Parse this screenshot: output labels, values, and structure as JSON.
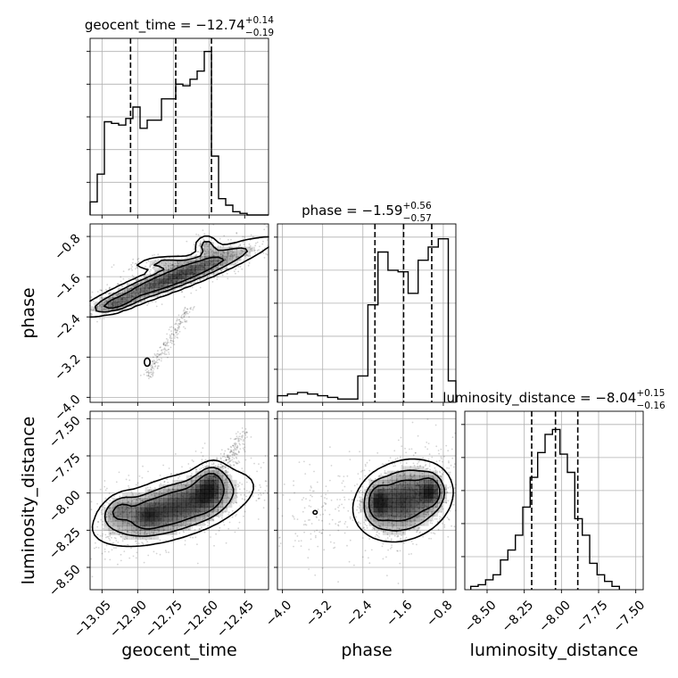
{
  "chart_data": {
    "type": "corner",
    "grid": true,
    "parameters": [
      {
        "name": "geocent_time",
        "axis_label": "geocent_time",
        "title": {
          "prefix": "geocent_time = ",
          "value": "−12.74",
          "sup": "+0.14",
          "sub": "−0.19"
        },
        "range": [
          -13.1,
          -12.35
        ],
        "ticks": [
          -13.05,
          -12.9,
          -12.75,
          -12.6,
          -12.45
        ],
        "tick_labels": [
          "−13.05",
          "−12.90",
          "−12.75",
          "−12.60",
          "−12.45"
        ],
        "quantiles": [
          -12.93,
          -12.74,
          -12.59
        ],
        "histogram": {
          "bin_edges": [
            -13.1,
            -13.07,
            -13.04,
            -13.01,
            -12.98,
            -12.95,
            -12.92,
            -12.89,
            -12.86,
            -12.83,
            -12.8,
            -12.77,
            -12.74,
            -12.71,
            -12.68,
            -12.65,
            -12.62,
            -12.59,
            -12.56,
            -12.53,
            -12.5,
            -12.47,
            -12.44,
            -12.41,
            -12.38,
            -12.35
          ],
          "counts": [
            0.08,
            0.25,
            0.57,
            0.56,
            0.55,
            0.59,
            0.66,
            0.53,
            0.58,
            0.58,
            0.71,
            0.71,
            0.8,
            0.79,
            0.83,
            0.88,
            1.0,
            0.36,
            0.1,
            0.06,
            0.02,
            0.01,
            0.0,
            0.0,
            0.0
          ]
        }
      },
      {
        "name": "phase",
        "axis_label": "phase",
        "title": {
          "prefix": "phase = ",
          "value": "−1.59",
          "sup": "+0.56",
          "sub": "−0.57"
        },
        "range": [
          -4.1,
          -0.55
        ],
        "ticks": [
          -4.0,
          -3.2,
          -2.4,
          -1.6,
          -0.8
        ],
        "tick_labels": [
          "−4.0",
          "−3.2",
          "−2.4",
          "−1.6",
          "−0.8"
        ],
        "quantiles": [
          -2.16,
          -1.59,
          -1.03
        ],
        "histogram": {
          "bin_edges": [
            -4.1,
            -3.9,
            -3.7,
            -3.5,
            -3.3,
            -3.1,
            -2.9,
            -2.7,
            -2.5,
            -2.3,
            -2.1,
            -1.9,
            -1.7,
            -1.5,
            -1.3,
            -1.1,
            -0.9,
            -0.7,
            -0.55
          ],
          "counts": [
            0.04,
            0.05,
            0.06,
            0.05,
            0.04,
            0.03,
            0.02,
            0.02,
            0.16,
            0.59,
            0.91,
            0.8,
            0.79,
            0.66,
            0.86,
            0.94,
            0.99,
            0.13
          ]
        }
      },
      {
        "name": "luminosity_distance",
        "axis_label": "luminosity_distance",
        "title": {
          "prefix": "luminosity_distance = ",
          "value": "−8.04",
          "sup": "+0.15",
          "sub": "−0.16"
        },
        "range": [
          -8.65,
          -7.45
        ],
        "ticks": [
          -8.5,
          -8.25,
          -8.0,
          -7.75,
          -7.5
        ],
        "tick_labels": [
          "−8.50",
          "−8.25",
          "−8.00",
          "−7.75",
          "−7.50"
        ],
        "quantiles": [
          -8.2,
          -8.04,
          -7.89
        ],
        "histogram": {
          "bin_edges": [
            -8.61,
            -8.56,
            -8.51,
            -8.46,
            -8.41,
            -8.36,
            -8.31,
            -8.26,
            -8.21,
            -8.16,
            -8.11,
            -8.06,
            -8.01,
            -7.96,
            -7.91,
            -7.86,
            -7.81,
            -7.76,
            -7.71,
            -7.66,
            -7.61
          ],
          "counts": [
            0.02,
            0.03,
            0.06,
            0.09,
            0.18,
            0.24,
            0.33,
            0.5,
            0.68,
            0.83,
            0.94,
            0.97,
            0.82,
            0.71,
            0.43,
            0.33,
            0.16,
            0.09,
            0.05,
            0.02
          ]
        }
      }
    ],
    "pairs": [
      {
        "x": "geocent_time",
        "y": "phase",
        "blobs": [
          {
            "cx": -12.74,
            "cy": -1.6,
            "sx": 0.21,
            "sy": 0.4,
            "rho": 0.93,
            "w": 1.0
          },
          {
            "cx": -12.99,
            "cy": -2.15,
            "sx": 0.05,
            "sy": 0.1,
            "rho": 0.6,
            "w": 0.5
          },
          {
            "cx": -12.61,
            "cy": -0.98,
            "sx": 0.03,
            "sy": 0.12,
            "rho": 0.0,
            "w": 0.45
          },
          {
            "cx": -12.8,
            "cy": -1.32,
            "sx": 0.07,
            "sy": 0.08,
            "rho": 0.4,
            "w": 0.4
          }
        ],
        "trail": {
          "from": [
            -12.86,
            -3.6
          ],
          "to": [
            -12.68,
            -2.2
          ],
          "spread": 0.025
        },
        "isolated_contours": [
          {
            "cx": -12.86,
            "cy": -3.3,
            "sx": 0.012,
            "sy": 0.08
          }
        ]
      },
      {
        "x": "geocent_time",
        "y": "luminosity_distance",
        "blobs": [
          {
            "cx": -12.75,
            "cy": -8.1,
            "sx": 0.17,
            "sy": 0.13,
            "rho": 0.55,
            "w": 1.0
          },
          {
            "cx": -12.6,
            "cy": -7.96,
            "sx": 0.04,
            "sy": 0.09,
            "rho": 0.2,
            "w": 0.7
          },
          {
            "cx": -12.98,
            "cy": -8.11,
            "sx": 0.04,
            "sy": 0.06,
            "rho": 0.3,
            "w": 0.45
          },
          {
            "cx": -12.86,
            "cy": -8.15,
            "sx": 0.03,
            "sy": 0.05,
            "rho": 0.0,
            "w": 0.35
          }
        ],
        "trail": {
          "from": [
            -12.6,
            -7.95
          ],
          "to": [
            -12.45,
            -7.6
          ],
          "spread": 0.04
        },
        "isolated_contours": []
      },
      {
        "x": "phase",
        "y": "luminosity_distance",
        "blobs": [
          {
            "cx": -1.6,
            "cy": -8.05,
            "sx": 0.5,
            "sy": 0.14,
            "rho": 0.2,
            "w": 1.0
          },
          {
            "cx": -2.1,
            "cy": -8.06,
            "sx": 0.12,
            "sy": 0.07,
            "rho": 0.0,
            "w": 0.7
          },
          {
            "cx": -1.05,
            "cy": -7.99,
            "sx": 0.13,
            "sy": 0.06,
            "rho": 0.0,
            "w": 0.7
          },
          {
            "cx": -3.4,
            "cy": -8.15,
            "sx": 0.3,
            "sy": 0.15,
            "rho": 0.0,
            "w": 0.1
          }
        ],
        "trail": null,
        "isolated_contours": [
          {
            "cx": -3.35,
            "cy": -8.13,
            "sx": 0.04,
            "sy": 0.012
          }
        ]
      }
    ]
  }
}
